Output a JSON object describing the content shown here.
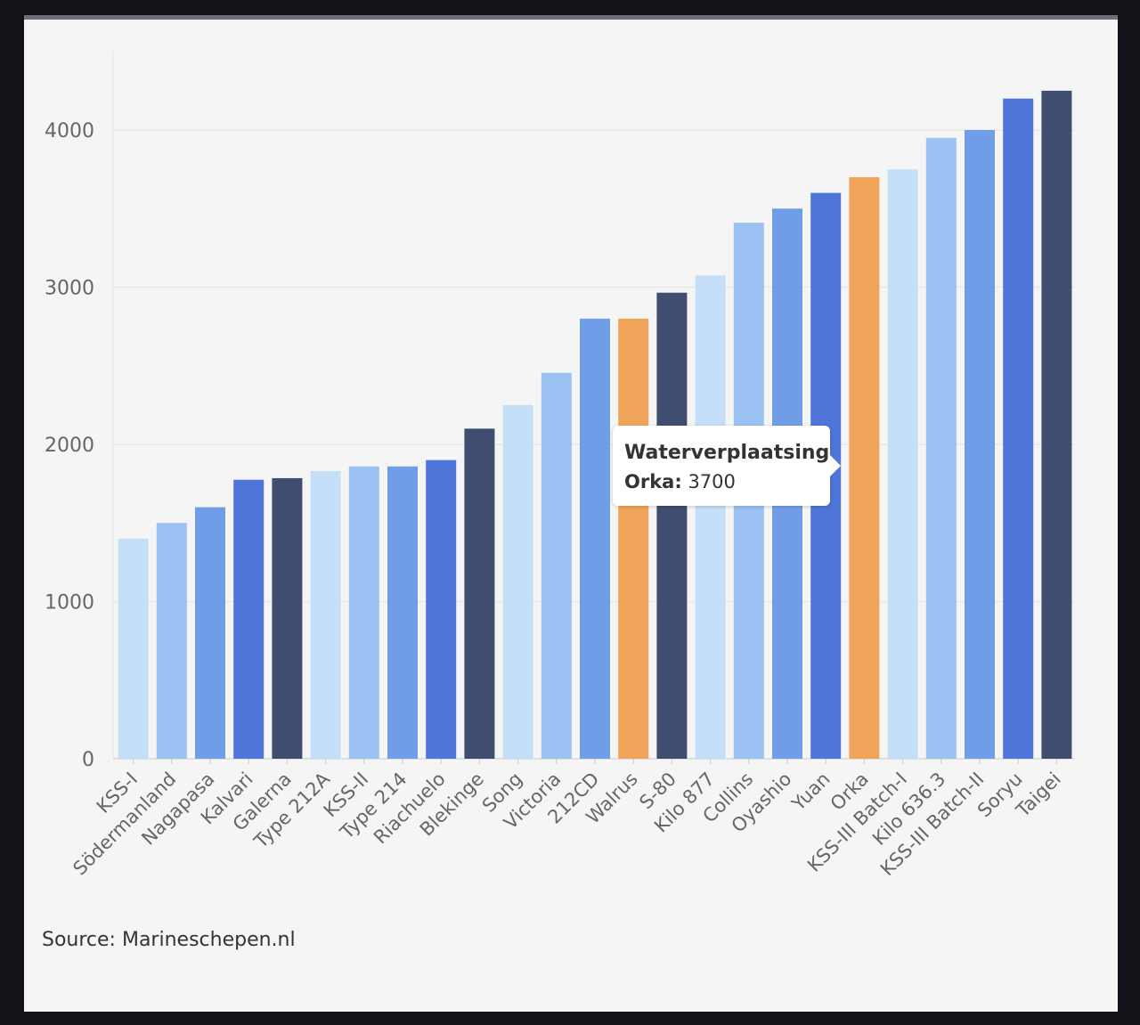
{
  "source": "Source: Marineschepen.nl",
  "tooltip": {
    "title": "Waterverplaatsing",
    "label": "Orka:",
    "value": "3700"
  },
  "colors": {
    "background": "#f5f5f5",
    "highlight": "#f0a45a",
    "palette": [
      "#c5dff8",
      "#9bc2f2",
      "#6f9de8",
      "#5075d8",
      "#3f4d70"
    ]
  },
  "chart_data": {
    "type": "bar",
    "title": "",
    "xlabel": "",
    "ylabel": "",
    "ylim": [
      0,
      4500
    ],
    "yticks": [
      0,
      1000,
      2000,
      3000,
      4000
    ],
    "highlighted": [
      "Walrus",
      "Orka"
    ],
    "categories": [
      "KSS-I",
      "Södermanland",
      "Nagapasa",
      "Kalvari",
      "Galerna",
      "Type 212A",
      "KSS-II",
      "Type 214",
      "Riachuelo",
      "Blekinge",
      "Song",
      "Victoria",
      "212CD",
      "Walrus",
      "S-80",
      "Kilo 877",
      "Collins",
      "Oyashio",
      "Yuan",
      "Orka",
      "KSS-III Batch-I",
      "Kilo 636.3",
      "KSS-III Batch-II",
      "Soryu",
      "Taigei"
    ],
    "series": [
      {
        "name": "Waterverplaatsing",
        "values": [
          1400,
          1500,
          1600,
          1775,
          1785,
          1830,
          1860,
          1860,
          1900,
          2100,
          2250,
          2455,
          2800,
          2800,
          2965,
          3075,
          3410,
          3500,
          3600,
          3700,
          3750,
          3950,
          4000,
          4200,
          4250
        ]
      }
    ]
  }
}
